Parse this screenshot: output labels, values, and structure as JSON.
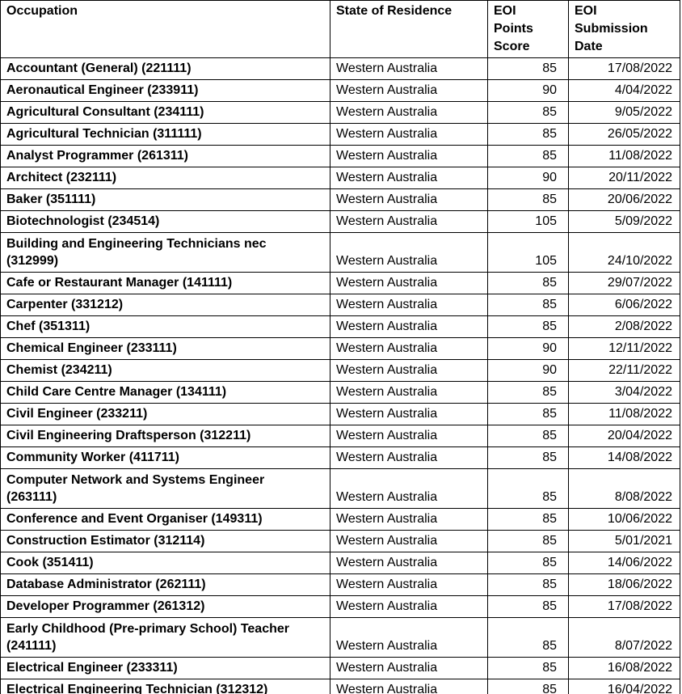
{
  "table": {
    "columns": [
      {
        "label": "Occupation"
      },
      {
        "label": "State of Residence"
      },
      {
        "label": "EOI\nPoints\nScore"
      },
      {
        "label": "EOI\nSubmission\nDate"
      }
    ],
    "rows": [
      {
        "occupation": "Accountant (General) (221111)",
        "state": "Western Australia",
        "score": "85",
        "date": "17/08/2022"
      },
      {
        "occupation": "Aeronautical Engineer (233911)",
        "state": "Western Australia",
        "score": "90",
        "date": "4/04/2022"
      },
      {
        "occupation": "Agricultural Consultant (234111)",
        "state": "Western Australia",
        "score": "85",
        "date": "9/05/2022"
      },
      {
        "occupation": "Agricultural Technician (311111)",
        "state": "Western Australia",
        "score": "85",
        "date": "26/05/2022"
      },
      {
        "occupation": "Analyst Programmer (261311)",
        "state": "Western Australia",
        "score": "85",
        "date": "11/08/2022"
      },
      {
        "occupation": "Architect (232111)",
        "state": "Western Australia",
        "score": "90",
        "date": "20/11/2022"
      },
      {
        "occupation": "Baker (351111)",
        "state": "Western Australia",
        "score": "85",
        "date": "20/06/2022"
      },
      {
        "occupation": "Biotechnologist (234514)",
        "state": "Western Australia",
        "score": "105",
        "date": "5/09/2022"
      },
      {
        "occupation": "Building and Engineering Technicians nec\n(312999)",
        "state": "Western Australia",
        "score": "105",
        "date": "24/10/2022"
      },
      {
        "occupation": "Cafe or Restaurant Manager (141111)",
        "state": "Western Australia",
        "score": "85",
        "date": "29/07/2022"
      },
      {
        "occupation": "Carpenter (331212)",
        "state": "Western Australia",
        "score": "85",
        "date": "6/06/2022"
      },
      {
        "occupation": "Chef (351311)",
        "state": "Western Australia",
        "score": "85",
        "date": "2/08/2022"
      },
      {
        "occupation": "Chemical Engineer (233111)",
        "state": "Western Australia",
        "score": "90",
        "date": "12/11/2022"
      },
      {
        "occupation": "Chemist (234211)",
        "state": "Western Australia",
        "score": "90",
        "date": "22/11/2022"
      },
      {
        "occupation": "Child Care Centre Manager (134111)",
        "state": "Western Australia",
        "score": "85",
        "date": "3/04/2022"
      },
      {
        "occupation": "Civil Engineer (233211)",
        "state": "Western Australia",
        "score": "85",
        "date": "11/08/2022"
      },
      {
        "occupation": "Civil Engineering Draftsperson (312211)",
        "state": "Western Australia",
        "score": "85",
        "date": "20/04/2022"
      },
      {
        "occupation": "Community Worker (411711)",
        "state": "Western Australia",
        "score": "85",
        "date": "14/08/2022"
      },
      {
        "occupation": "Computer Network and Systems Engineer\n(263111)",
        "state": "Western Australia",
        "score": "85",
        "date": "8/08/2022"
      },
      {
        "occupation": "Conference and Event Organiser (149311)",
        "state": "Western Australia",
        "score": "85",
        "date": "10/06/2022"
      },
      {
        "occupation": "Construction Estimator (312114)",
        "state": "Western Australia",
        "score": "85",
        "date": "5/01/2021"
      },
      {
        "occupation": "Cook (351411)",
        "state": "Western Australia",
        "score": "85",
        "date": "14/06/2022"
      },
      {
        "occupation": "Database Administrator (262111)",
        "state": "Western Australia",
        "score": "85",
        "date": "18/06/2022"
      },
      {
        "occupation": "Developer Programmer (261312)",
        "state": "Western Australia",
        "score": "85",
        "date": "17/08/2022"
      },
      {
        "occupation": "Early Childhood (Pre-primary School) Teacher\n(241111)",
        "state": "Western Australia",
        "score": "85",
        "date": "8/07/2022"
      },
      {
        "occupation": "Electrical Engineer (233311)",
        "state": "Western Australia",
        "score": "85",
        "date": "16/08/2022"
      },
      {
        "occupation": "Electrical Engineering Technician (312312)",
        "state": "Western Australia",
        "score": "85",
        "date": "16/04/2022"
      }
    ]
  }
}
